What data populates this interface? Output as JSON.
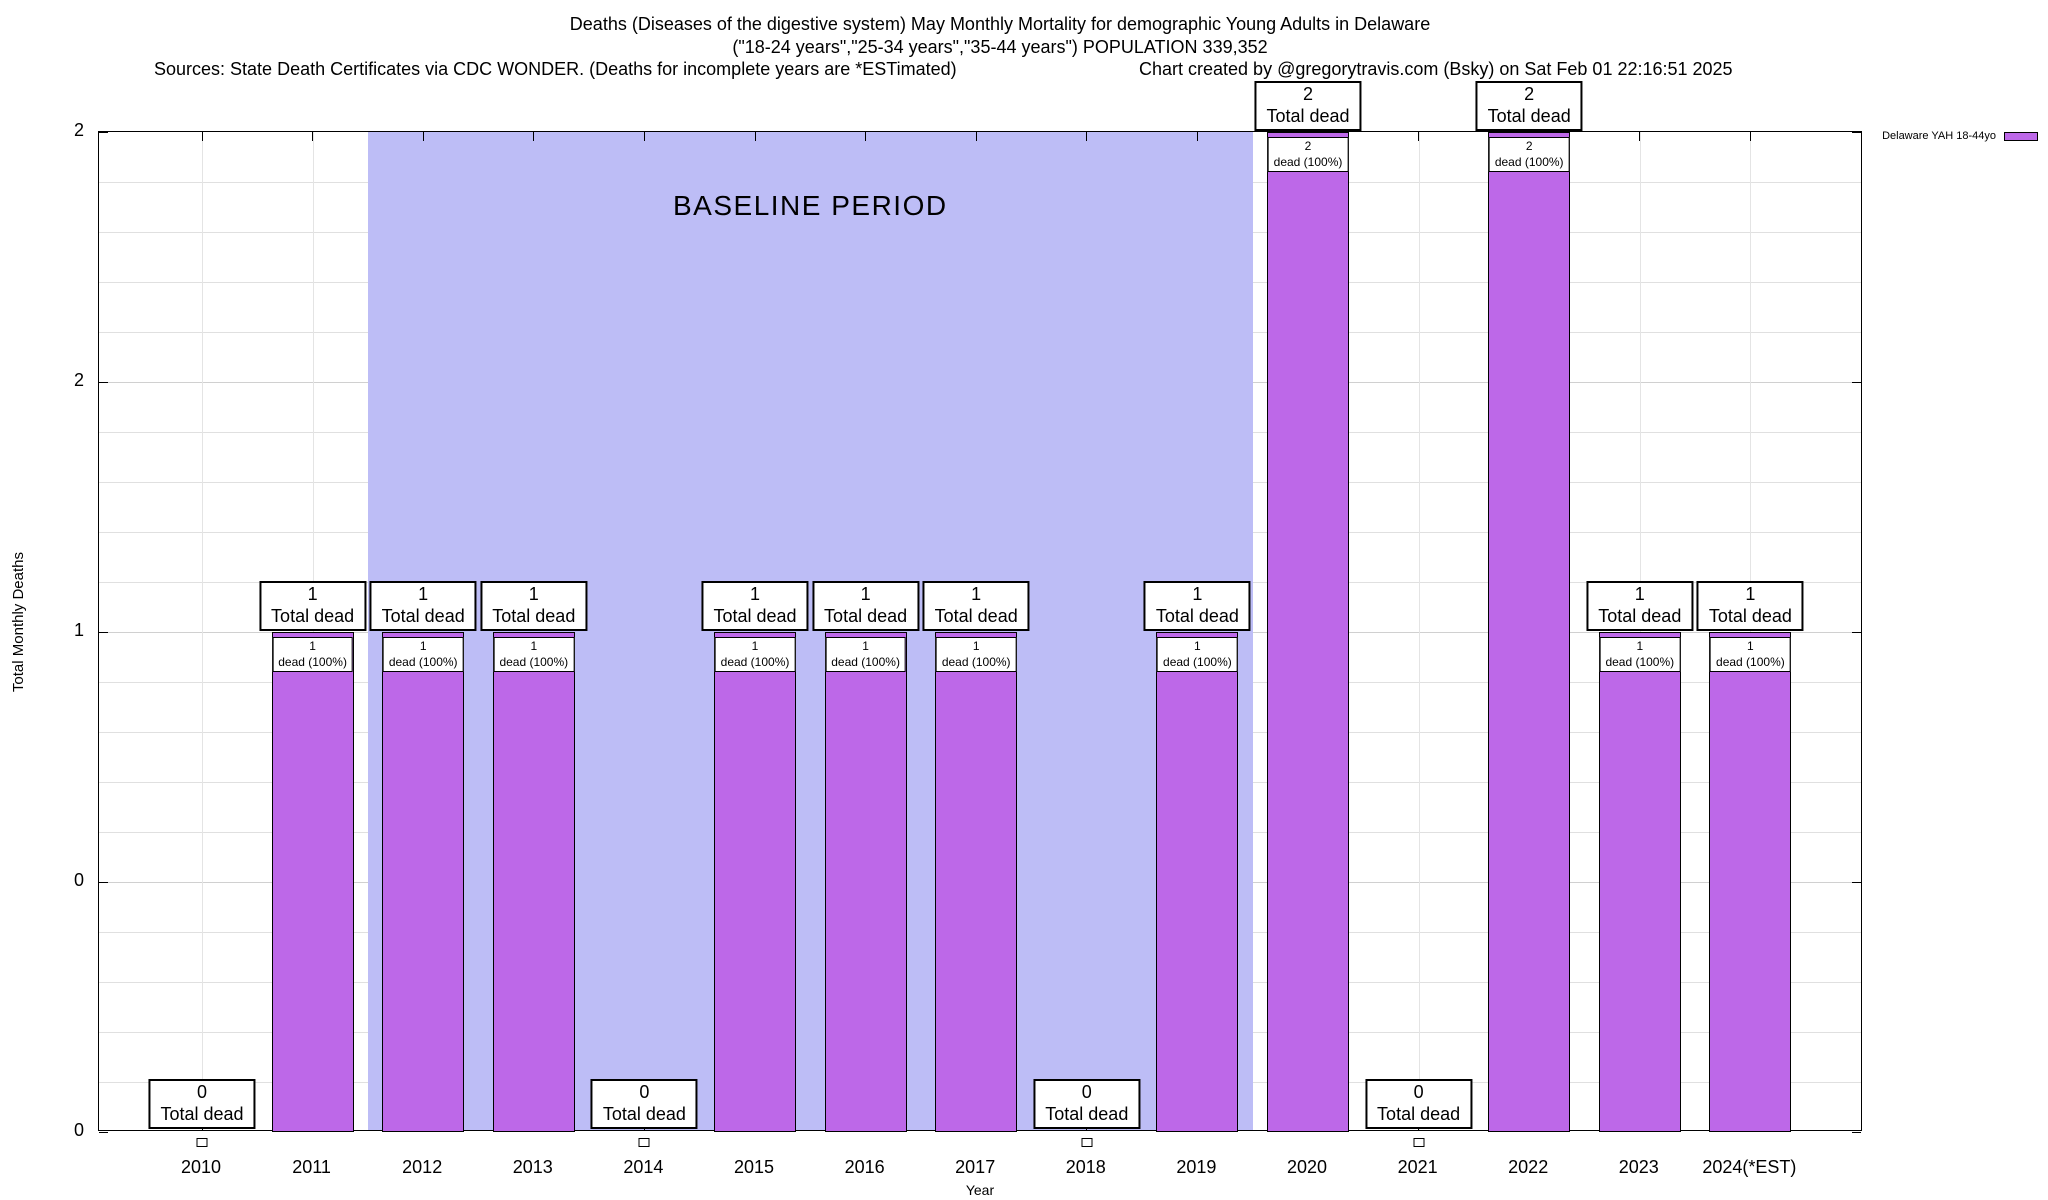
{
  "chart_data": {
    "type": "bar",
    "title": "Deaths (Diseases of the digestive system) May Monthly Mortality for demographic Young Adults in Delaware",
    "subtitle": "(\"18-24 years\",\"25-34 years\",\"35-44 years\") POPULATION 339,352",
    "source_note": "Sources: State Death Certificates via CDC WONDER. (Deaths for incomplete years are *ESTimated)",
    "credit_note": "Chart created by @gregorytravis.com (Bsky) on Sat Feb 01 22:16:51 2025",
    "xlabel": "Year",
    "ylabel": "Total Monthly Deaths",
    "ylim": [
      0,
      2
    ],
    "ytick_positions": [
      0,
      0.5,
      1,
      1.5,
      2
    ],
    "ytick_labels": [
      "0",
      "0",
      "1",
      "2",
      "2"
    ],
    "minor_grid_step": 0.1,
    "grid": true,
    "categories": [
      "2010",
      "2011",
      "2012",
      "2013",
      "2014",
      "2015",
      "2016",
      "2017",
      "2018",
      "2019",
      "2020",
      "2021",
      "2022",
      "2023",
      "2024(*EST)"
    ],
    "values": [
      0,
      1,
      1,
      1,
      0,
      1,
      1,
      1,
      0,
      1,
      2,
      0,
      2,
      1,
      1
    ],
    "bar_color": "#bd68e8",
    "baseline": {
      "label": "BASELINE PERIOD",
      "start_index": 2,
      "end_index": 9,
      "color": "#bdbdf6"
    },
    "legend": {
      "label": "Delaware YAH 18-44yo",
      "swatch_color": "#bd68e8",
      "position": "top-right-outside"
    },
    "annotations": {
      "total_label": "Total dead",
      "inner_label": "dead (100%)"
    }
  }
}
